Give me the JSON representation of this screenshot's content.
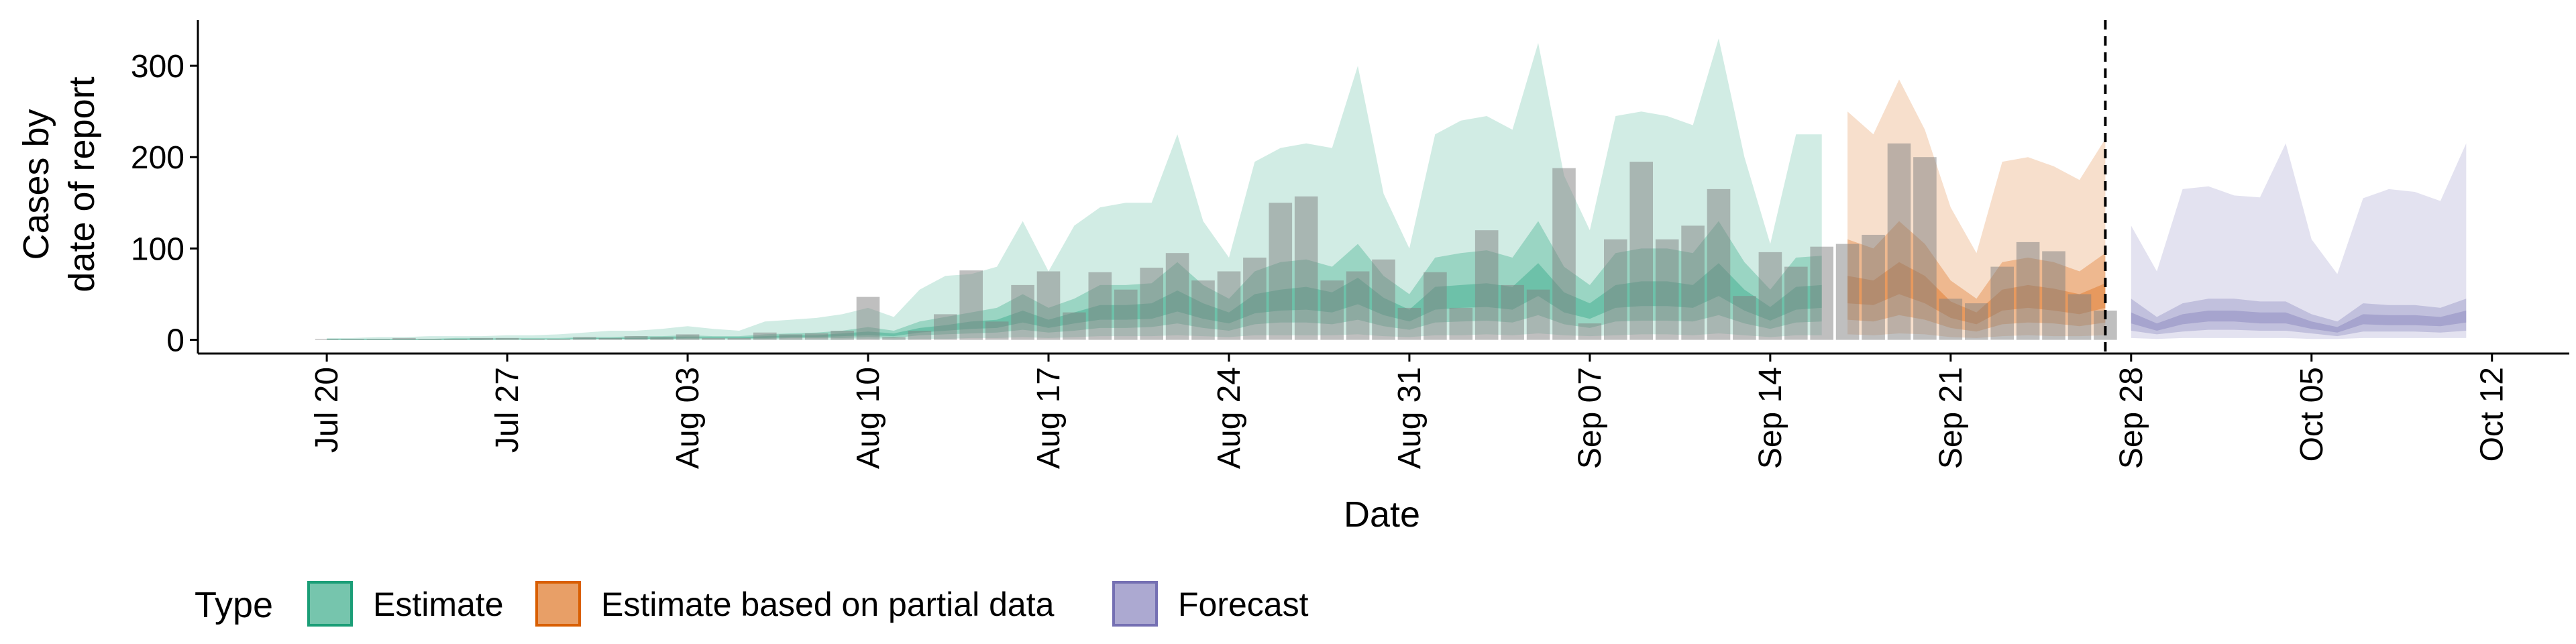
{
  "chart_data": {
    "type": "area",
    "xlabel": "Date",
    "ylabel_lines": [
      "Cases by",
      "date of report"
    ],
    "ylim": [
      -15,
      350
    ],
    "y_ticks": [
      0,
      100,
      200,
      300
    ],
    "x_range": [
      "2020-07-15",
      "2020-10-15"
    ],
    "x_ticks": [
      {
        "date": "2020-07-20",
        "label": "Jul 20"
      },
      {
        "date": "2020-07-27",
        "label": "Jul 27"
      },
      {
        "date": "2020-08-03",
        "label": "Aug 03"
      },
      {
        "date": "2020-08-10",
        "label": "Aug 10"
      },
      {
        "date": "2020-08-17",
        "label": "Aug 17"
      },
      {
        "date": "2020-08-24",
        "label": "Aug 24"
      },
      {
        "date": "2020-08-31",
        "label": "Aug 31"
      },
      {
        "date": "2020-09-07",
        "label": "Sep 07"
      },
      {
        "date": "2020-09-14",
        "label": "Sep 14"
      },
      {
        "date": "2020-09-21",
        "label": "Sep 21"
      },
      {
        "date": "2020-09-28",
        "label": "Sep 28"
      },
      {
        "date": "2020-10-05",
        "label": "Oct 05"
      },
      {
        "date": "2020-10-12",
        "label": "Oct 12"
      }
    ],
    "forecast_start_line": "2020-09-27",
    "legend": {
      "title": "Type",
      "position": "bottom",
      "entries": [
        {
          "label": "Estimate",
          "fill": "#1b9e77"
        },
        {
          "label": "Estimate based on partial data",
          "fill": "#d95f02"
        },
        {
          "label": "Forecast",
          "fill": "#7570b3"
        }
      ]
    },
    "reported_cases": {
      "dates": [
        "2020-07-20",
        "2020-07-21",
        "2020-07-22",
        "2020-07-23",
        "2020-07-24",
        "2020-07-25",
        "2020-07-26",
        "2020-07-27",
        "2020-07-28",
        "2020-07-29",
        "2020-07-30",
        "2020-07-31",
        "2020-08-01",
        "2020-08-02",
        "2020-08-03",
        "2020-08-04",
        "2020-08-05",
        "2020-08-06",
        "2020-08-07",
        "2020-08-08",
        "2020-08-09",
        "2020-08-10",
        "2020-08-11",
        "2020-08-12",
        "2020-08-13",
        "2020-08-14",
        "2020-08-15",
        "2020-08-16",
        "2020-08-17",
        "2020-08-18",
        "2020-08-19",
        "2020-08-20",
        "2020-08-21",
        "2020-08-22",
        "2020-08-23",
        "2020-08-24",
        "2020-08-25",
        "2020-08-26",
        "2020-08-27",
        "2020-08-28",
        "2020-08-29",
        "2020-08-30",
        "2020-08-31",
        "2020-09-01",
        "2020-09-02",
        "2020-09-03",
        "2020-09-04",
        "2020-09-05",
        "2020-09-06",
        "2020-09-07",
        "2020-09-08",
        "2020-09-09",
        "2020-09-10",
        "2020-09-11",
        "2020-09-12",
        "2020-09-13",
        "2020-09-14",
        "2020-09-15",
        "2020-09-16",
        "2020-09-17",
        "2020-09-18",
        "2020-09-19",
        "2020-09-20",
        "2020-09-21",
        "2020-09-22",
        "2020-09-23",
        "2020-09-24",
        "2020-09-25",
        "2020-09-26",
        "2020-09-27"
      ],
      "values": [
        1,
        1,
        1,
        2,
        1,
        1,
        2,
        2,
        1,
        1,
        3,
        2,
        4,
        3,
        6,
        2,
        2,
        8,
        6,
        7,
        10,
        47,
        3,
        10,
        28,
        76,
        20,
        60,
        75,
        30,
        74,
        55,
        79,
        95,
        65,
        75,
        90,
        150,
        157,
        65,
        75,
        88,
        35,
        74,
        35,
        120,
        60,
        55,
        188,
        18,
        110,
        195,
        110,
        125,
        165,
        48,
        96,
        80,
        102,
        105,
        115,
        215,
        200,
        45,
        40,
        80,
        107,
        97,
        50,
        32
      ]
    },
    "estimate": {
      "dates": [
        "2020-07-20",
        "2020-07-21",
        "2020-07-22",
        "2020-07-23",
        "2020-07-24",
        "2020-07-25",
        "2020-07-26",
        "2020-07-27",
        "2020-07-28",
        "2020-07-29",
        "2020-07-30",
        "2020-07-31",
        "2020-08-01",
        "2020-08-02",
        "2020-08-03",
        "2020-08-04",
        "2020-08-05",
        "2020-08-06",
        "2020-08-07",
        "2020-08-08",
        "2020-08-09",
        "2020-08-10",
        "2020-08-11",
        "2020-08-12",
        "2020-08-13",
        "2020-08-14",
        "2020-08-15",
        "2020-08-16",
        "2020-08-17",
        "2020-08-18",
        "2020-08-19",
        "2020-08-20",
        "2020-08-21",
        "2020-08-22",
        "2020-08-23",
        "2020-08-24",
        "2020-08-25",
        "2020-08-26",
        "2020-08-27",
        "2020-08-28",
        "2020-08-29",
        "2020-08-30",
        "2020-08-31",
        "2020-09-01",
        "2020-09-02",
        "2020-09-03",
        "2020-09-04",
        "2020-09-05",
        "2020-09-06",
        "2020-09-07",
        "2020-09-08",
        "2020-09-09",
        "2020-09-10",
        "2020-09-11",
        "2020-09-12",
        "2020-09-13",
        "2020-09-14",
        "2020-09-15",
        "2020-09-16"
      ],
      "upper90": [
        2,
        2,
        3,
        3,
        4,
        4,
        4,
        5,
        5,
        6,
        8,
        10,
        10,
        12,
        15,
        12,
        10,
        20,
        22,
        24,
        28,
        35,
        25,
        55,
        70,
        72,
        80,
        130,
        75,
        125,
        145,
        150,
        150,
        225,
        130,
        90,
        195,
        210,
        215,
        210,
        300,
        160,
        100,
        225,
        240,
        245,
        230,
        325,
        180,
        120,
        245,
        250,
        245,
        235,
        330,
        200,
        105,
        225,
        225
      ],
      "upper50": [
        1,
        1,
        1,
        1,
        1,
        2,
        2,
        2,
        2,
        2,
        3,
        3,
        4,
        4,
        5,
        4,
        4,
        6,
        7,
        8,
        10,
        14,
        10,
        20,
        25,
        30,
        35,
        50,
        35,
        45,
        60,
        60,
        62,
        85,
        60,
        45,
        75,
        85,
        88,
        80,
        105,
        70,
        50,
        90,
        95,
        98,
        90,
        130,
        80,
        60,
        95,
        100,
        100,
        95,
        130,
        85,
        55,
        90,
        92
      ],
      "upper20": [
        1,
        1,
        1,
        1,
        1,
        1,
        1,
        1,
        1,
        1,
        2,
        2,
        2,
        3,
        3,
        3,
        3,
        4,
        5,
        5,
        7,
        9,
        7,
        13,
        16,
        20,
        22,
        32,
        22,
        30,
        38,
        38,
        40,
        54,
        40,
        30,
        50,
        55,
        58,
        52,
        68,
        46,
        33,
        58,
        60,
        62,
        58,
        84,
        52,
        40,
        60,
        64,
        64,
        60,
        84,
        55,
        36,
        58,
        60
      ],
      "lower20": [
        0,
        0,
        0,
        0,
        0,
        0,
        0,
        1,
        1,
        1,
        1,
        1,
        1,
        1,
        2,
        2,
        2,
        2,
        3,
        3,
        4,
        5,
        4,
        8,
        10,
        12,
        13,
        19,
        13,
        18,
        22,
        22,
        23,
        31,
        23,
        18,
        29,
        32,
        33,
        30,
        39,
        27,
        20,
        33,
        35,
        36,
        33,
        48,
        30,
        23,
        35,
        37,
        37,
        35,
        48,
        32,
        21,
        33,
        35
      ],
      "lower50": [
        0,
        0,
        0,
        0,
        0,
        0,
        0,
        0,
        0,
        0,
        1,
        1,
        1,
        1,
        1,
        1,
        1,
        1,
        2,
        2,
        2,
        3,
        2,
        5,
        6,
        7,
        8,
        11,
        8,
        10,
        13,
        13,
        14,
        18,
        13,
        10,
        17,
        19,
        19,
        17,
        22,
        15,
        11,
        19,
        20,
        21,
        19,
        27,
        17,
        13,
        20,
        21,
        21,
        20,
        27,
        18,
        12,
        19,
        20
      ],
      "lower90": [
        0,
        0,
        0,
        0,
        0,
        0,
        0,
        0,
        0,
        0,
        0,
        0,
        0,
        0,
        0,
        0,
        0,
        0,
        0,
        0,
        0,
        1,
        0,
        1,
        1,
        2,
        2,
        3,
        2,
        3,
        4,
        4,
        4,
        5,
        4,
        3,
        5,
        5,
        5,
        5,
        6,
        4,
        3,
        5,
        5,
        6,
        5,
        7,
        5,
        4,
        5,
        6,
        6,
        5,
        7,
        5,
        3,
        5,
        5
      ]
    },
    "partial": {
      "dates": [
        "2020-09-17",
        "2020-09-18",
        "2020-09-19",
        "2020-09-20",
        "2020-09-21",
        "2020-09-22",
        "2020-09-23",
        "2020-09-24",
        "2020-09-25",
        "2020-09-26",
        "2020-09-27"
      ],
      "upper90": [
        250,
        225,
        285,
        230,
        145,
        95,
        195,
        200,
        190,
        175,
        220
      ],
      "upper50": [
        110,
        100,
        130,
        105,
        65,
        45,
        85,
        90,
        85,
        75,
        95
      ],
      "upper20": [
        70,
        65,
        85,
        70,
        42,
        30,
        55,
        60,
        56,
        50,
        62
      ],
      "lower20": [
        40,
        38,
        50,
        40,
        24,
        17,
        32,
        35,
        32,
        28,
        35
      ],
      "lower50": [
        22,
        20,
        27,
        22,
        13,
        9,
        17,
        19,
        18,
        15,
        19
      ],
      "lower90": [
        6,
        5,
        7,
        6,
        3,
        2,
        4,
        5,
        4,
        4,
        5
      ]
    },
    "forecast": {
      "dates": [
        "2020-09-28",
        "2020-09-29",
        "2020-09-30",
        "2020-10-01",
        "2020-10-02",
        "2020-10-03",
        "2020-10-04",
        "2020-10-05",
        "2020-10-06",
        "2020-10-07",
        "2020-10-08",
        "2020-10-09",
        "2020-10-10",
        "2020-10-11"
      ],
      "upper90": [
        125,
        75,
        165,
        168,
        158,
        156,
        215,
        110,
        72,
        155,
        165,
        162,
        152,
        215
      ],
      "upper50": [
        45,
        25,
        40,
        45,
        45,
        42,
        42,
        28,
        20,
        40,
        38,
        38,
        35,
        45
      ],
      "upper20": [
        30,
        18,
        28,
        32,
        32,
        30,
        30,
        20,
        14,
        28,
        27,
        27,
        25,
        32
      ],
      "lower20": [
        18,
        10,
        17,
        20,
        20,
        18,
        18,
        12,
        8,
        17,
        16,
        16,
        15,
        19
      ],
      "lower50": [
        10,
        6,
        9,
        11,
        11,
        10,
        10,
        7,
        4,
        9,
        9,
        9,
        8,
        10
      ],
      "lower90": [
        2,
        1,
        2,
        2,
        2,
        2,
        2,
        1,
        1,
        2,
        2,
        2,
        2,
        2
      ]
    }
  }
}
